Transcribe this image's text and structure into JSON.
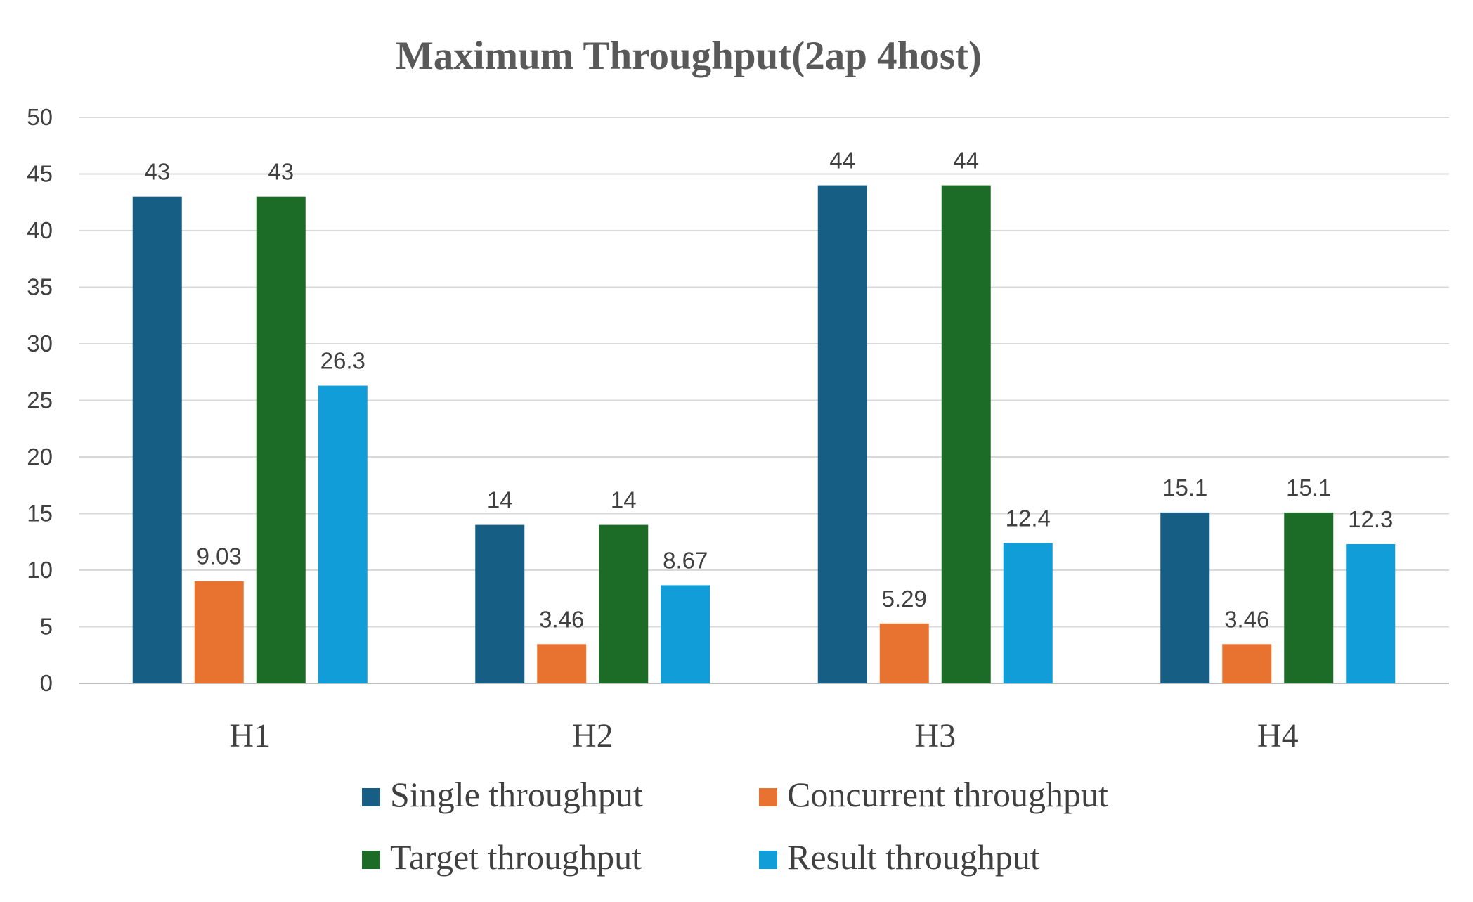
{
  "chart_data": {
    "type": "bar",
    "title": "Maximum Throughput(2ap 4host)",
    "categories": [
      "H1",
      "H2",
      "H3",
      "H4"
    ],
    "series": [
      {
        "name": "Single throughput",
        "values": [
          43,
          14,
          44,
          15.1
        ],
        "color": "#165e83"
      },
      {
        "name": "Concurrent throughput",
        "values": [
          9.03,
          3.46,
          5.29,
          3.46
        ],
        "color": "#e87331"
      },
      {
        "name": "Target throughput",
        "values": [
          43,
          14,
          44,
          15.1
        ],
        "color": "#1c6b27"
      },
      {
        "name": "Result throughput",
        "values": [
          26.3,
          8.67,
          12.4,
          12.3
        ],
        "color": "#119ed8"
      }
    ],
    "ylim": [
      0,
      50
    ],
    "yticks": [
      0,
      5,
      10,
      15,
      20,
      25,
      30,
      35,
      40,
      45,
      50
    ],
    "grid": true,
    "legend_position": "bottom",
    "data_labels": true
  }
}
